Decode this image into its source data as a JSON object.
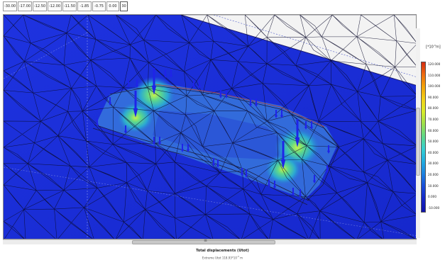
{
  "ruler": {
    "values": [
      "-30.00",
      "-17.00",
      "-12.50",
      "-12.00",
      "-11.50",
      "-1.85",
      "-0.75",
      "0.00",
      "30"
    ],
    "current_index": 8
  },
  "legend": {
    "unit_base": "[*10",
    "unit_exp": "-3",
    "unit_tail": "m]",
    "labels": [
      "120.000",
      "110.000",
      "100.000",
      "90.000",
      "80.000",
      "70.000",
      "60.000",
      "50.000",
      "40.000",
      "30.000",
      "20.000",
      "10.000",
      "0.000",
      "-10.000"
    ]
  },
  "caption": {
    "title": "Total displacements (Utot)",
    "subtitle_prefix": "Extreme Utot 118.93*10",
    "subtitle_exp": "-3",
    "subtitle_unit": " m"
  },
  "colors": {
    "model_blue": "#1a2bd9",
    "mesh_line": "#0a0a2a",
    "load_arrow": "#1f24e8",
    "excavation_edge": "#c0392b",
    "scroll_grip": "≡"
  },
  "icons": {
    "load": "point-load-arrow-icon",
    "scroll_grip": "scroll-grip-icon"
  }
}
